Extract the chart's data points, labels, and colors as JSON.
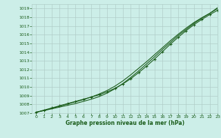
{
  "xlabel": "Graphe pression niveau de la mer (hPa)",
  "background_color": "#cceee8",
  "grid_color": "#b0ccc8",
  "line_color": "#1a5c1a",
  "xlim": [
    -0.5,
    23
  ],
  "ylim": [
    1007,
    1019.5
  ],
  "yticks": [
    1007,
    1008,
    1009,
    1010,
    1011,
    1012,
    1013,
    1014,
    1015,
    1016,
    1017,
    1018,
    1019
  ],
  "xticks": [
    0,
    1,
    2,
    3,
    4,
    5,
    6,
    7,
    8,
    9,
    10,
    11,
    12,
    13,
    14,
    15,
    16,
    17,
    18,
    19,
    20,
    21,
    22,
    23
  ],
  "line1_x": [
    0,
    1,
    2,
    3,
    4,
    5,
    6,
    7,
    8,
    9,
    10,
    11,
    12,
    13,
    14,
    15,
    16,
    17,
    18,
    19,
    20,
    21,
    22,
    23
  ],
  "line1_y": [
    1007.1,
    1007.3,
    1007.55,
    1007.8,
    1008.05,
    1008.3,
    1008.55,
    1008.85,
    1009.2,
    1009.6,
    1010.1,
    1010.7,
    1011.4,
    1012.15,
    1012.9,
    1013.7,
    1014.5,
    1015.3,
    1016.05,
    1016.75,
    1017.4,
    1017.95,
    1018.45,
    1019.1
  ],
  "line2_x": [
    0,
    1,
    2,
    3,
    4,
    5,
    6,
    7,
    8,
    9,
    10,
    11,
    12,
    13,
    14,
    15,
    16,
    17,
    18,
    19,
    20,
    21,
    22,
    23
  ],
  "line2_y": [
    1007.1,
    1007.35,
    1007.6,
    1007.85,
    1008.1,
    1008.35,
    1008.6,
    1008.85,
    1009.1,
    1009.45,
    1009.85,
    1010.35,
    1010.95,
    1011.65,
    1012.4,
    1013.2,
    1014.05,
    1014.9,
    1015.7,
    1016.45,
    1017.15,
    1017.75,
    1018.3,
    1018.8
  ],
  "line3_x": [
    0,
    1,
    2,
    3,
    4,
    5,
    6,
    7,
    8,
    9,
    10,
    11,
    12,
    13,
    14,
    15,
    16,
    17,
    18,
    19,
    20,
    21,
    22,
    23
  ],
  "line3_y": [
    1007.1,
    1007.3,
    1007.5,
    1007.7,
    1007.9,
    1008.1,
    1008.35,
    1008.6,
    1008.9,
    1009.3,
    1009.8,
    1010.4,
    1011.1,
    1011.85,
    1012.65,
    1013.45,
    1014.3,
    1015.1,
    1015.9,
    1016.6,
    1017.3,
    1017.9,
    1018.45,
    1019.0
  ]
}
